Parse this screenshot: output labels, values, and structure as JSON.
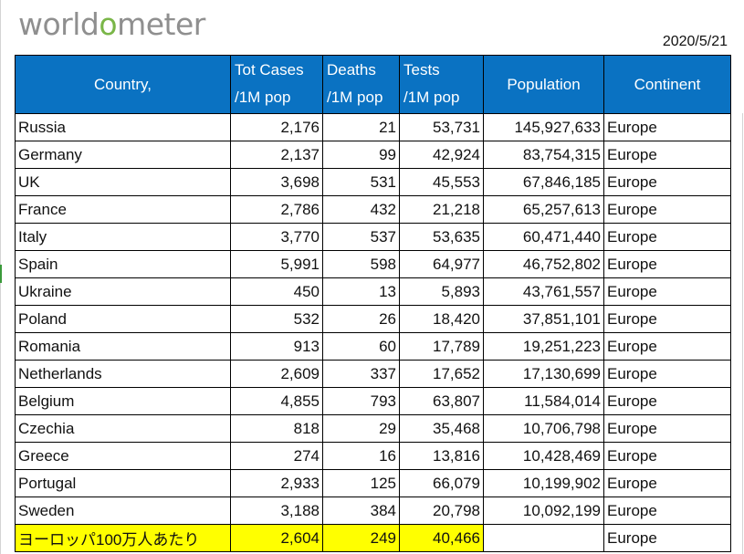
{
  "logo": {
    "pre": "world",
    "o": "o",
    "post": "meter"
  },
  "date": "2020/5/21",
  "headers": {
    "country": "Country,",
    "cases_1": "Tot Cases",
    "cases_2": "/1M pop",
    "deaths_1": "Deaths",
    "deaths_2": "/1M pop",
    "tests_1": "Tests",
    "tests_2": "/1M pop",
    "population": "Population",
    "continent": "Continent"
  },
  "rows": [
    {
      "country": "Russia",
      "cases": "2,176",
      "deaths": "21",
      "tests": "53,731",
      "population": "145,927,633",
      "continent": "Europe"
    },
    {
      "country": "Germany",
      "cases": "2,137",
      "deaths": "99",
      "tests": "42,924",
      "population": "83,754,315",
      "continent": "Europe"
    },
    {
      "country": "UK",
      "cases": "3,698",
      "deaths": "531",
      "tests": "45,553",
      "population": "67,846,185",
      "continent": "Europe"
    },
    {
      "country": "France",
      "cases": "2,786",
      "deaths": "432",
      "tests": "21,218",
      "population": "65,257,613",
      "continent": "Europe"
    },
    {
      "country": "Italy",
      "cases": "3,770",
      "deaths": "537",
      "tests": "53,635",
      "population": "60,471,440",
      "continent": "Europe"
    },
    {
      "country": "Spain",
      "cases": "5,991",
      "deaths": "598",
      "tests": "64,977",
      "population": "46,752,802",
      "continent": "Europe"
    },
    {
      "country": "Ukraine",
      "cases": "450",
      "deaths": "13",
      "tests": "5,893",
      "population": "43,761,557",
      "continent": "Europe"
    },
    {
      "country": "Poland",
      "cases": "532",
      "deaths": "26",
      "tests": "18,420",
      "population": "37,851,101",
      "continent": "Europe"
    },
    {
      "country": "Romania",
      "cases": "913",
      "deaths": "60",
      "tests": "17,789",
      "population": "19,251,223",
      "continent": "Europe"
    },
    {
      "country": "Netherlands",
      "cases": "2,609",
      "deaths": "337",
      "tests": "17,652",
      "population": "17,130,699",
      "continent": "Europe"
    },
    {
      "country": "Belgium",
      "cases": "4,855",
      "deaths": "793",
      "tests": "63,807",
      "population": "11,584,014",
      "continent": "Europe"
    },
    {
      "country": "Czechia",
      "cases": "818",
      "deaths": "29",
      "tests": "35,468",
      "population": "10,706,798",
      "continent": "Europe"
    },
    {
      "country": "Greece",
      "cases": "274",
      "deaths": "16",
      "tests": "13,816",
      "population": "10,428,469",
      "continent": "Europe"
    },
    {
      "country": "Portugal",
      "cases": "2,933",
      "deaths": "125",
      "tests": "66,079",
      "population": "10,199,902",
      "continent": "Europe"
    },
    {
      "country": "Sweden",
      "cases": "3,188",
      "deaths": "384",
      "tests": "20,798",
      "population": "10,092,199",
      "continent": "Europe"
    }
  ],
  "summary": {
    "label": "ヨーロッパ100万人あたり",
    "cases": "2,604",
    "deaths": "249",
    "tests": "40,466",
    "population": "",
    "continent": "Europe"
  },
  "colors": {
    "header_bg": "#0a72c2",
    "highlight": "#ffff00",
    "logo_gray": "#8f8f8f",
    "logo_green": "#7ab648"
  }
}
